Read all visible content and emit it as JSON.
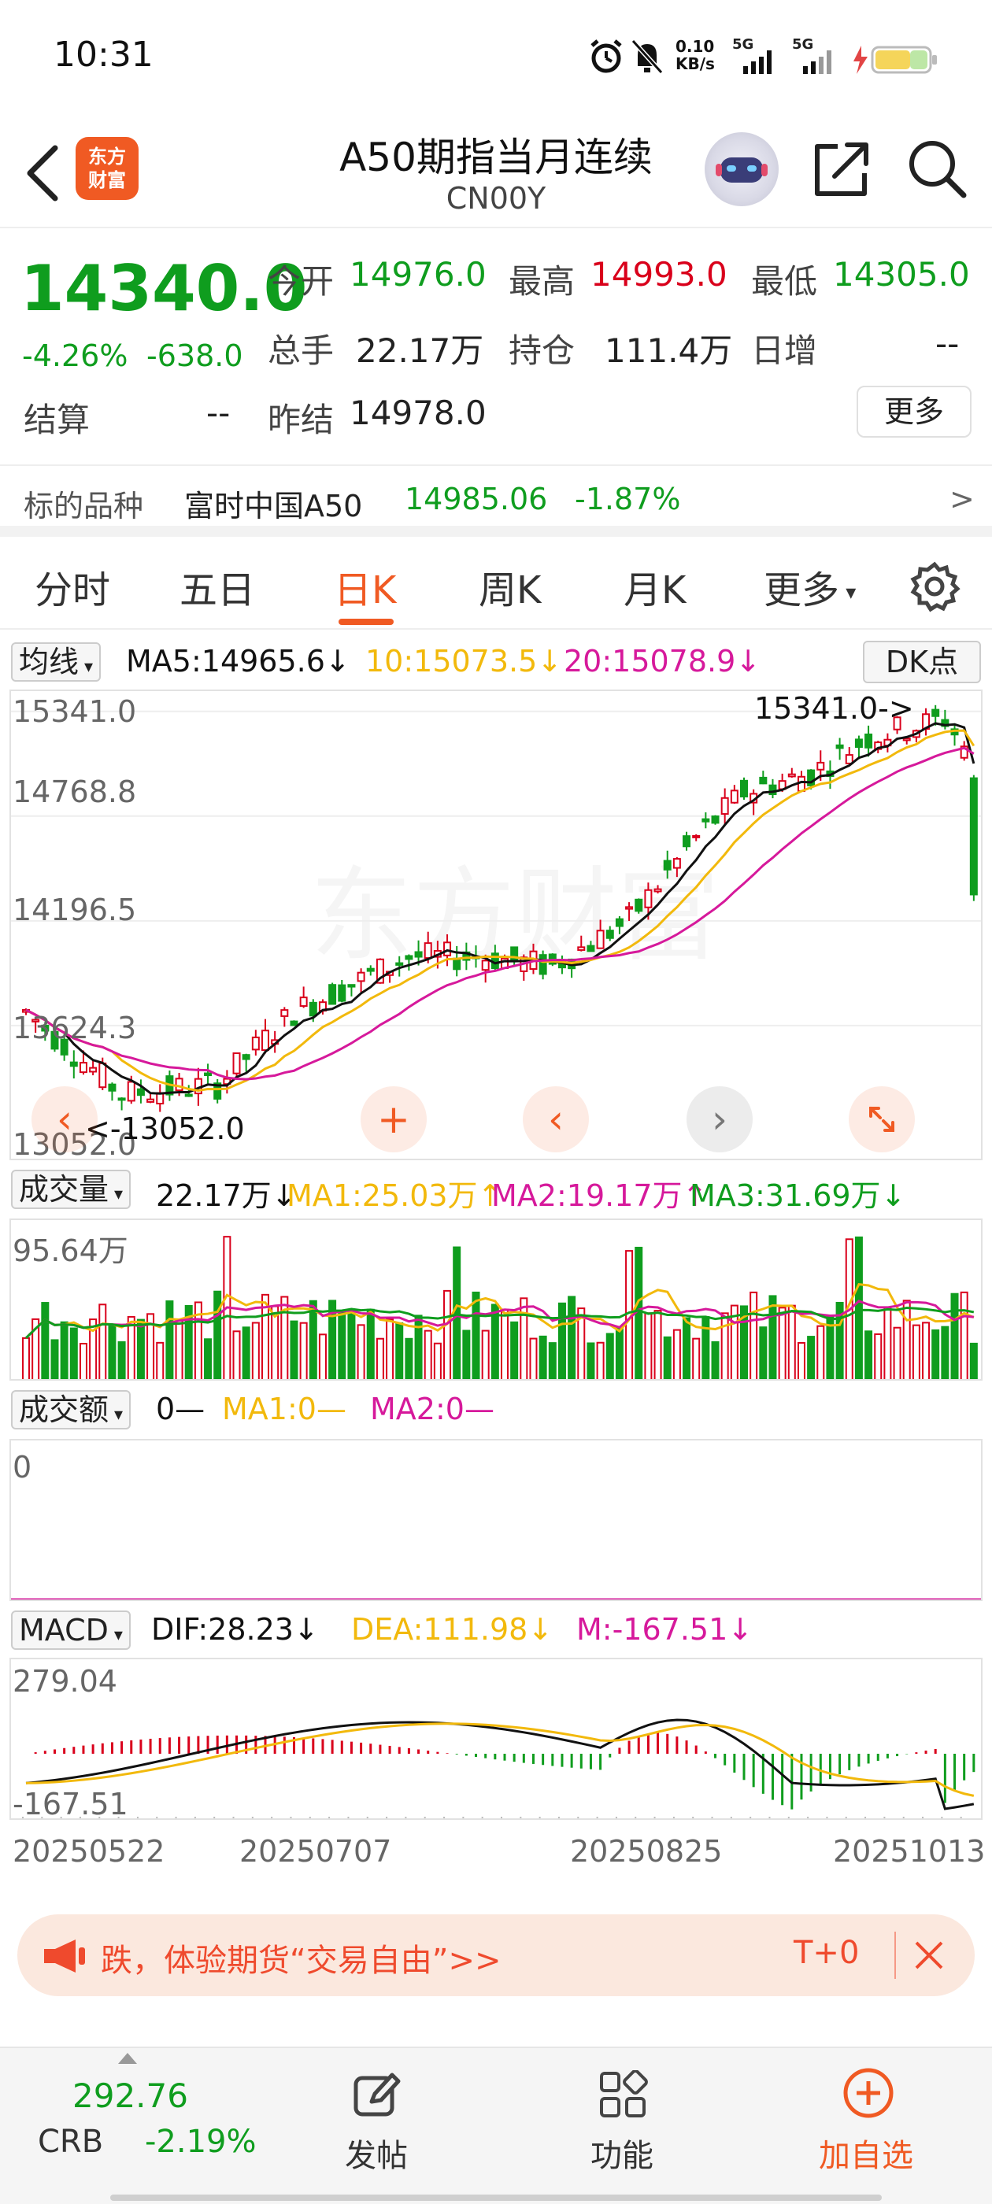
{
  "status_bar": {
    "time": "10:31",
    "net_speed": "0.10",
    "net_unit": "KB/s",
    "sim1": "5G",
    "sim2": "5G"
  },
  "header": {
    "logo_line1": "东方",
    "logo_line2": "财富",
    "title": "A50期指当月连续",
    "subtitle": "CN00Y"
  },
  "quote": {
    "price": "14340.0",
    "change_pct": "-4.26%",
    "change_val": "-638.0",
    "open_label": "今开",
    "open": "14976.0",
    "high_label": "最高",
    "high": "14993.0",
    "low_label": "最低",
    "low": "14305.0",
    "volume_label": "总手",
    "volume": "22.17万",
    "oi_label": "持仓",
    "oi": "111.4万",
    "daily_inc_label": "日增",
    "daily_inc": "--",
    "settle_label": "结算",
    "settle": "--",
    "prev_settle_label": "昨结",
    "prev_settle": "14978.0",
    "more": "更多"
  },
  "underlying": {
    "label": "标的品种",
    "name": "富时中国A50",
    "value": "14985.06",
    "change": "-1.87%",
    "arrow": ">"
  },
  "tabs": [
    "分时",
    "五日",
    "日K",
    "周K",
    "月K",
    "更多"
  ],
  "active_tab": "日K",
  "kline": {
    "indicator": "均线",
    "ma5": "MA5:14965.6",
    "ma10": "10:15073.5",
    "ma20": "20:15078.9",
    "arrow_down": "↓",
    "dk_button": "DK点",
    "y_labels": [
      "15341.0",
      "14768.8",
      "14196.5",
      "13624.3",
      "13052.0"
    ],
    "max_marker": "15341.0->",
    "min_marker": "<-13052.0",
    "watermark": "东方财富",
    "colors": {
      "up": "#d9001b",
      "down": "#0f9d1e",
      "ma5": "#111111",
      "ma10": "#f2b90c",
      "ma20": "#d6199b"
    }
  },
  "volume": {
    "indicator": "成交量",
    "value": "22.17万",
    "ma1": "MA1:25.03万",
    "ma2": "MA2:19.17万",
    "ma3": "MA3:31.69万",
    "y_label": "95.64万"
  },
  "amount": {
    "indicator": "成交额",
    "value": "0—",
    "ma1": "MA1:0—",
    "ma2": "MA2:0—",
    "y_label": "0"
  },
  "macd": {
    "indicator": "MACD",
    "dif": "DIF:28.23",
    "dea": "DEA:111.98",
    "m": "M:-167.51",
    "y_top": "279.04",
    "y_bottom": "-167.51"
  },
  "dates": [
    "20250522",
    "20250707",
    "20250825",
    "20251013"
  ],
  "banner": {
    "text": "跌，体验期货“交易自由”>>",
    "right_text": "T+0"
  },
  "bottom_nav": {
    "crb_value": "292.76",
    "crb_label": "CRB",
    "crb_change": "-2.19%",
    "post": "发帖",
    "functions": "功能",
    "add_watch": "加自选"
  }
}
